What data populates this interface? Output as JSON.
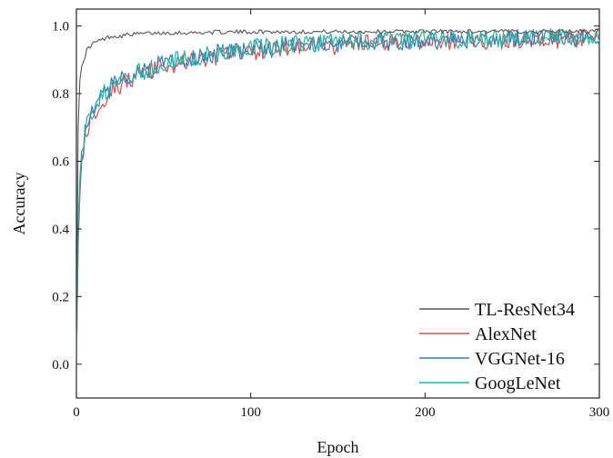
{
  "chart_data": {
    "type": "line",
    "title": "",
    "xlabel": "Epoch",
    "ylabel": "Accuracy",
    "xlim": [
      0,
      300
    ],
    "ylim": [
      -0.1,
      1.05
    ],
    "xticks": [
      0,
      100,
      200,
      300
    ],
    "yticks": [
      0.0,
      0.2,
      0.4,
      0.6,
      0.8,
      1.0
    ],
    "xtick_labels": [
      "0",
      "100",
      "200",
      "300"
    ],
    "ytick_labels": [
      "0.0",
      "0.2",
      "0.4",
      "0.6",
      "0.8",
      "1.0"
    ],
    "grid": false,
    "legend_position": "bottom-right",
    "series": [
      {
        "name": "TL-ResNet34",
        "color": "#555555",
        "x": [
          0,
          1,
          2,
          3,
          4,
          5,
          6,
          8,
          10,
          15,
          20,
          25,
          30,
          40,
          50,
          60,
          70,
          80,
          90,
          100,
          120,
          140,
          160,
          180,
          200,
          220,
          240,
          260,
          280,
          300
        ],
        "y": [
          0.0,
          0.7,
          0.84,
          0.88,
          0.9,
          0.91,
          0.93,
          0.94,
          0.95,
          0.96,
          0.97,
          0.97,
          0.975,
          0.978,
          0.98,
          0.98,
          0.98,
          0.982,
          0.982,
          0.983,
          0.983,
          0.983,
          0.983,
          0.984,
          0.984,
          0.984,
          0.984,
          0.984,
          0.985,
          0.985
        ]
      },
      {
        "name": "AlexNet",
        "color": "#e8474a",
        "x": [
          0,
          1,
          2,
          3,
          5,
          10,
          15,
          20,
          30,
          40,
          50,
          60,
          70,
          80,
          90,
          100,
          120,
          140,
          160,
          180,
          200,
          220,
          240,
          260,
          280,
          300
        ],
        "y": [
          0.0,
          0.35,
          0.5,
          0.6,
          0.68,
          0.74,
          0.78,
          0.81,
          0.84,
          0.86,
          0.88,
          0.89,
          0.9,
          0.91,
          0.92,
          0.925,
          0.935,
          0.94,
          0.945,
          0.95,
          0.953,
          0.956,
          0.958,
          0.96,
          0.962,
          0.965
        ]
      },
      {
        "name": "VGGNet-16",
        "color": "#2f7fc1",
        "x": [
          0,
          1,
          2,
          3,
          5,
          10,
          15,
          20,
          30,
          40,
          50,
          60,
          70,
          80,
          90,
          100,
          120,
          140,
          160,
          180,
          200,
          220,
          240,
          260,
          280,
          300
        ],
        "y": [
          0.0,
          0.38,
          0.52,
          0.61,
          0.69,
          0.75,
          0.79,
          0.82,
          0.85,
          0.87,
          0.89,
          0.9,
          0.91,
          0.92,
          0.925,
          0.93,
          0.94,
          0.945,
          0.95,
          0.955,
          0.957,
          0.96,
          0.962,
          0.964,
          0.966,
          0.968
        ]
      },
      {
        "name": "GoogLeNet",
        "color": "#1fb5a3",
        "x": [
          0,
          1,
          2,
          3,
          5,
          10,
          15,
          20,
          30,
          40,
          50,
          60,
          70,
          80,
          90,
          100,
          120,
          140,
          160,
          180,
          200,
          220,
          240,
          260,
          280,
          300
        ],
        "y": [
          0.0,
          0.4,
          0.55,
          0.63,
          0.7,
          0.76,
          0.8,
          0.82,
          0.85,
          0.87,
          0.89,
          0.9,
          0.91,
          0.92,
          0.93,
          0.935,
          0.945,
          0.95,
          0.955,
          0.958,
          0.96,
          0.962,
          0.964,
          0.966,
          0.968,
          0.97
        ]
      }
    ]
  }
}
